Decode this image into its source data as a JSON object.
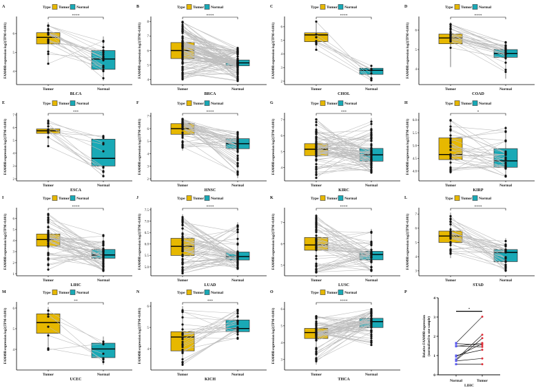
{
  "colors": {
    "tumor": "#E7B800",
    "normal": "#19A9B6",
    "pair_line": "#BDBDBD",
    "point": "#111111",
    "p_normal_point": "#5B5BF0",
    "p_tumor_point": "#E0303A"
  },
  "legend": {
    "title": "Type",
    "tumor": "Tumor",
    "normal": "Normal"
  },
  "ylabel": "FAM49B expression log2(TPM+0.001)",
  "group_labels": [
    "Tumor",
    "Normal"
  ],
  "chart_data": [
    {
      "type": "box",
      "letter": "A",
      "dataset": "BLCA",
      "sig": "****",
      "ylim": [
        3.4,
        6.8
      ],
      "yticks": [
        4,
        5,
        6
      ],
      "n": 19,
      "tumor": {
        "min": 4.4,
        "q1": 5.45,
        "median": 5.8,
        "q3": 6.05,
        "max": 6.6
      },
      "normal": {
        "min": 3.5,
        "q1": 4.1,
        "median": 4.65,
        "q3": 5.1,
        "max": 5.85
      }
    },
    {
      "type": "box",
      "letter": "B",
      "dataset": "BRCA",
      "sig": "****",
      "ylim": [
        3.8,
        8.2
      ],
      "yticks": [
        4,
        5,
        6,
        7,
        8
      ],
      "n": 100,
      "tumor": {
        "min": 4.0,
        "q1": 5.45,
        "median": 6.0,
        "q3": 6.55,
        "max": 8.0
      },
      "normal": {
        "min": 3.9,
        "q1": 4.95,
        "median": 5.15,
        "q3": 5.35,
        "max": 6.2
      }
    },
    {
      "type": "box",
      "letter": "C",
      "dataset": "CHOL",
      "sig": "****",
      "ylim": [
        1.9,
        6.6
      ],
      "yticks": [
        2,
        3,
        4,
        5,
        6
      ],
      "n": 9,
      "tumor": {
        "min": 4.3,
        "q1": 4.9,
        "median": 5.4,
        "q3": 5.55,
        "max": 6.4
      },
      "normal": {
        "min": 2.05,
        "q1": 2.5,
        "median": 2.8,
        "q3": 2.95,
        "max": 3.2
      }
    },
    {
      "type": "box",
      "letter": "D",
      "dataset": "COAD",
      "sig": "****",
      "ylim": [
        3.3,
        6.6
      ],
      "yticks": [
        4,
        5,
        6
      ],
      "n": 25,
      "tumor": {
        "min": 4.1,
        "q1": 5.3,
        "median": 5.6,
        "q3": 5.8,
        "max": 6.4
      },
      "normal": {
        "min": 3.5,
        "q1": 4.6,
        "median": 4.8,
        "q3": 5.0,
        "max": 5.4
      }
    },
    {
      "type": "box",
      "letter": "E",
      "dataset": "ESCA",
      "sig": "***",
      "ylim": [
        2,
        7
      ],
      "yticks": [
        2,
        3,
        4,
        5,
        6,
        7
      ],
      "n": 13,
      "tumor": {
        "min": 4.55,
        "q1": 5.55,
        "median": 5.75,
        "q3": 5.9,
        "max": 6.7
      },
      "normal": {
        "min": 2.15,
        "q1": 3.0,
        "median": 3.6,
        "q3": 5.1,
        "max": 5.45
      }
    },
    {
      "type": "box",
      "letter": "F",
      "dataset": "HNSC",
      "sig": "****",
      "ylim": [
        2,
        7.1
      ],
      "yticks": [
        2,
        3,
        4,
        5,
        6,
        7
      ],
      "n": 43,
      "tumor": {
        "min": 4.25,
        "q1": 5.55,
        "median": 6.0,
        "q3": 6.4,
        "max": 6.85
      },
      "normal": {
        "min": 2.05,
        "q1": 4.4,
        "median": 4.8,
        "q3": 5.2,
        "max": 5.8
      }
    },
    {
      "type": "box",
      "letter": "G",
      "dataset": "KIRC",
      "sig": "***",
      "ylim": [
        3.3,
        7.3
      ],
      "yticks": [
        4,
        5,
        6,
        7
      ],
      "n": 72,
      "tumor": {
        "min": 3.35,
        "q1": 4.75,
        "median": 5.15,
        "q3": 5.5,
        "max": 7.05
      },
      "normal": {
        "min": 3.65,
        "q1": 4.4,
        "median": 4.8,
        "q3": 5.2,
        "max": 7.1
      }
    },
    {
      "type": "box",
      "letter": "H",
      "dataset": "KIRP",
      "sig": "*",
      "ylim": [
        3.7,
        6.2
      ],
      "yticks": [
        4.0,
        4.5,
        5.0,
        5.5,
        6.0
      ],
      "n": 32,
      "tumor": {
        "min": 3.9,
        "q1": 4.45,
        "median": 4.65,
        "q3": 5.3,
        "max": 6.05
      },
      "normal": {
        "min": 3.75,
        "q1": 4.15,
        "median": 4.4,
        "q3": 4.88,
        "max": 5.75
      }
    },
    {
      "type": "box",
      "letter": "I",
      "dataset": "LIHC",
      "sig": "****",
      "ylim": [
        1,
        6.8
      ],
      "yticks": [
        1,
        2,
        3,
        4,
        5,
        6
      ],
      "n": 50,
      "tumor": {
        "min": 1.25,
        "q1": 3.5,
        "median": 4.1,
        "q3": 4.6,
        "max": 6.45
      },
      "normal": {
        "min": 1.25,
        "q1": 2.4,
        "median": 2.7,
        "q3": 3.2,
        "max": 4.5
      }
    },
    {
      "type": "box",
      "letter": "J",
      "dataset": "LUAD",
      "sig": "****",
      "ylim": [
        4.7,
        7.5
      ],
      "yticks": [
        5.0,
        5.5,
        6.0,
        6.5,
        7.0,
        7.5
      ],
      "n": 58,
      "tumor": {
        "min": 4.7,
        "q1": 5.5,
        "median": 5.9,
        "q3": 6.25,
        "max": 7.3
      },
      "normal": {
        "min": 4.9,
        "q1": 5.3,
        "median": 5.45,
        "q3": 5.65,
        "max": 6.95
      }
    },
    {
      "type": "box",
      "letter": "K",
      "dataset": "LUSC",
      "sig": "****",
      "ylim": [
        4.6,
        7.6
      ],
      "yticks": [
        5,
        6,
        7
      ],
      "n": 51,
      "tumor": {
        "min": 4.65,
        "q1": 5.7,
        "median": 5.95,
        "q3": 6.3,
        "max": 7.4
      },
      "normal": {
        "min": 4.7,
        "q1": 5.25,
        "median": 5.5,
        "q3": 5.65,
        "max": 6.7
      }
    },
    {
      "type": "box",
      "letter": "L",
      "dataset": "STAD",
      "sig": "****",
      "ylim": [
        2.8,
        7.3
      ],
      "yticks": [
        3,
        4,
        5,
        6,
        7
      ],
      "n": 32,
      "tumor": {
        "min": 3.9,
        "q1": 5.0,
        "median": 5.45,
        "q3": 5.8,
        "max": 7.1
      },
      "normal": {
        "min": 2.9,
        "q1": 3.65,
        "median": 4.3,
        "q3": 4.5,
        "max": 5.3
      }
    },
    {
      "type": "box",
      "letter": "M",
      "dataset": "UCEC",
      "sig": "**",
      "ylim": [
        3.1,
        6.2
      ],
      "yticks": [
        4,
        5,
        6
      ],
      "n": 7,
      "tumor": {
        "min": 3.98,
        "q1": 4.78,
        "median": 5.3,
        "q3": 5.72,
        "max": 6.05
      },
      "normal": {
        "min": 3.25,
        "q1": 3.6,
        "median": 4.02,
        "q3": 4.3,
        "max": 4.62
      }
    },
    {
      "type": "box",
      "letter": "N",
      "dataset": "KICH",
      "sig": "***",
      "ylim": [
        3.1,
        6.1
      ],
      "yticks": [
        4,
        5,
        6
      ],
      "n": 25,
      "tumor": {
        "min": 3.25,
        "q1": 3.9,
        "median": 4.55,
        "q3": 4.8,
        "max": 6.0
      },
      "normal": {
        "min": 4.45,
        "q1": 4.8,
        "median": 4.95,
        "q3": 5.35,
        "max": 5.85
      }
    },
    {
      "type": "box",
      "letter": "O",
      "dataset": "THCA",
      "sig": "****",
      "ylim": [
        2.5,
        6.3
      ],
      "yticks": [
        3,
        4,
        5,
        6
      ],
      "n": 59,
      "tumor": {
        "min": 2.7,
        "q1": 4.25,
        "median": 4.6,
        "q3": 4.85,
        "max": 5.6
      },
      "normal": {
        "min": 3.85,
        "q1": 4.9,
        "median": 5.25,
        "q3": 5.45,
        "max": 6.05
      }
    },
    {
      "type": "paired",
      "letter": "P",
      "dataset": "LIHC",
      "sig": "*",
      "ylabel": [
        "Relative FAM49B expression",
        "(normalized to one sample)"
      ],
      "ylim": [
        0,
        4
      ],
      "yticks": [
        0,
        1,
        2,
        3,
        4
      ],
      "categories": [
        "Normal",
        "Tumor"
      ],
      "pairs": [
        [
          1.65,
          3.02
        ],
        [
          1.62,
          1.55
        ],
        [
          1.5,
          1.45
        ],
        [
          1.48,
          1.65
        ],
        [
          1.0,
          1.3
        ],
        [
          0.95,
          1.62
        ],
        [
          0.8,
          2.08
        ],
        [
          0.75,
          1.9
        ],
        [
          0.72,
          0.85
        ],
        [
          0.55,
          0.55
        ]
      ]
    }
  ]
}
